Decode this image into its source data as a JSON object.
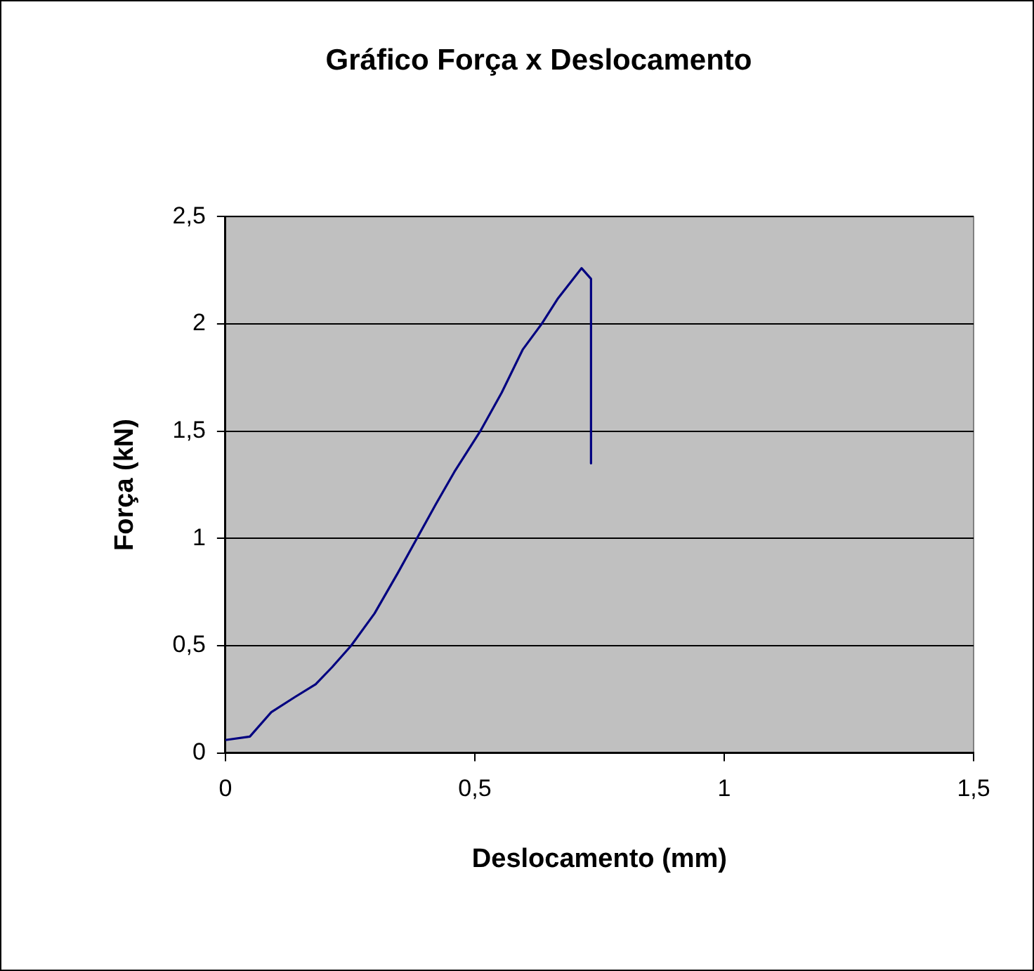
{
  "chart_data": {
    "type": "line",
    "title": "Gráfico Força x Deslocamento",
    "xlabel": "Deslocamento (mm)",
    "ylabel": "Força (kN)",
    "series": [
      {
        "color": "#000080",
        "x": [
          0,
          0.049,
          0.092,
          0.139,
          0.181,
          0.214,
          0.252,
          0.299,
          0.346,
          0.384,
          0.422,
          0.459,
          0.511,
          0.554,
          0.596,
          0.634,
          0.667,
          0.714,
          0.733,
          0.733
        ],
        "values": [
          0.06,
          0.076,
          0.19,
          0.26,
          0.32,
          0.4,
          0.5,
          0.65,
          0.84,
          1.0,
          1.16,
          1.31,
          1.5,
          1.68,
          1.88,
          2.0,
          2.12,
          2.26,
          2.21,
          1.35
        ]
      }
    ],
    "xlim": [
      0,
      1.5
    ],
    "xticks": [
      {
        "value": 0,
        "label": "0"
      },
      {
        "value": 0.5,
        "label": "0,5"
      },
      {
        "value": 1,
        "label": "1"
      },
      {
        "value": 1.5,
        "label": "1,5"
      }
    ],
    "ylim": [
      0,
      2.5
    ],
    "yticks": [
      {
        "value": 0,
        "label": "0"
      },
      {
        "value": 0.5,
        "label": "0,5"
      },
      {
        "value": 1,
        "label": "1"
      },
      {
        "value": 1.5,
        "label": "1,5"
      },
      {
        "value": 2,
        "label": "2"
      },
      {
        "value": 2.5,
        "label": "2,5"
      }
    ],
    "grid": "y",
    "legend": false,
    "marker": "none",
    "line_style": "solid"
  }
}
